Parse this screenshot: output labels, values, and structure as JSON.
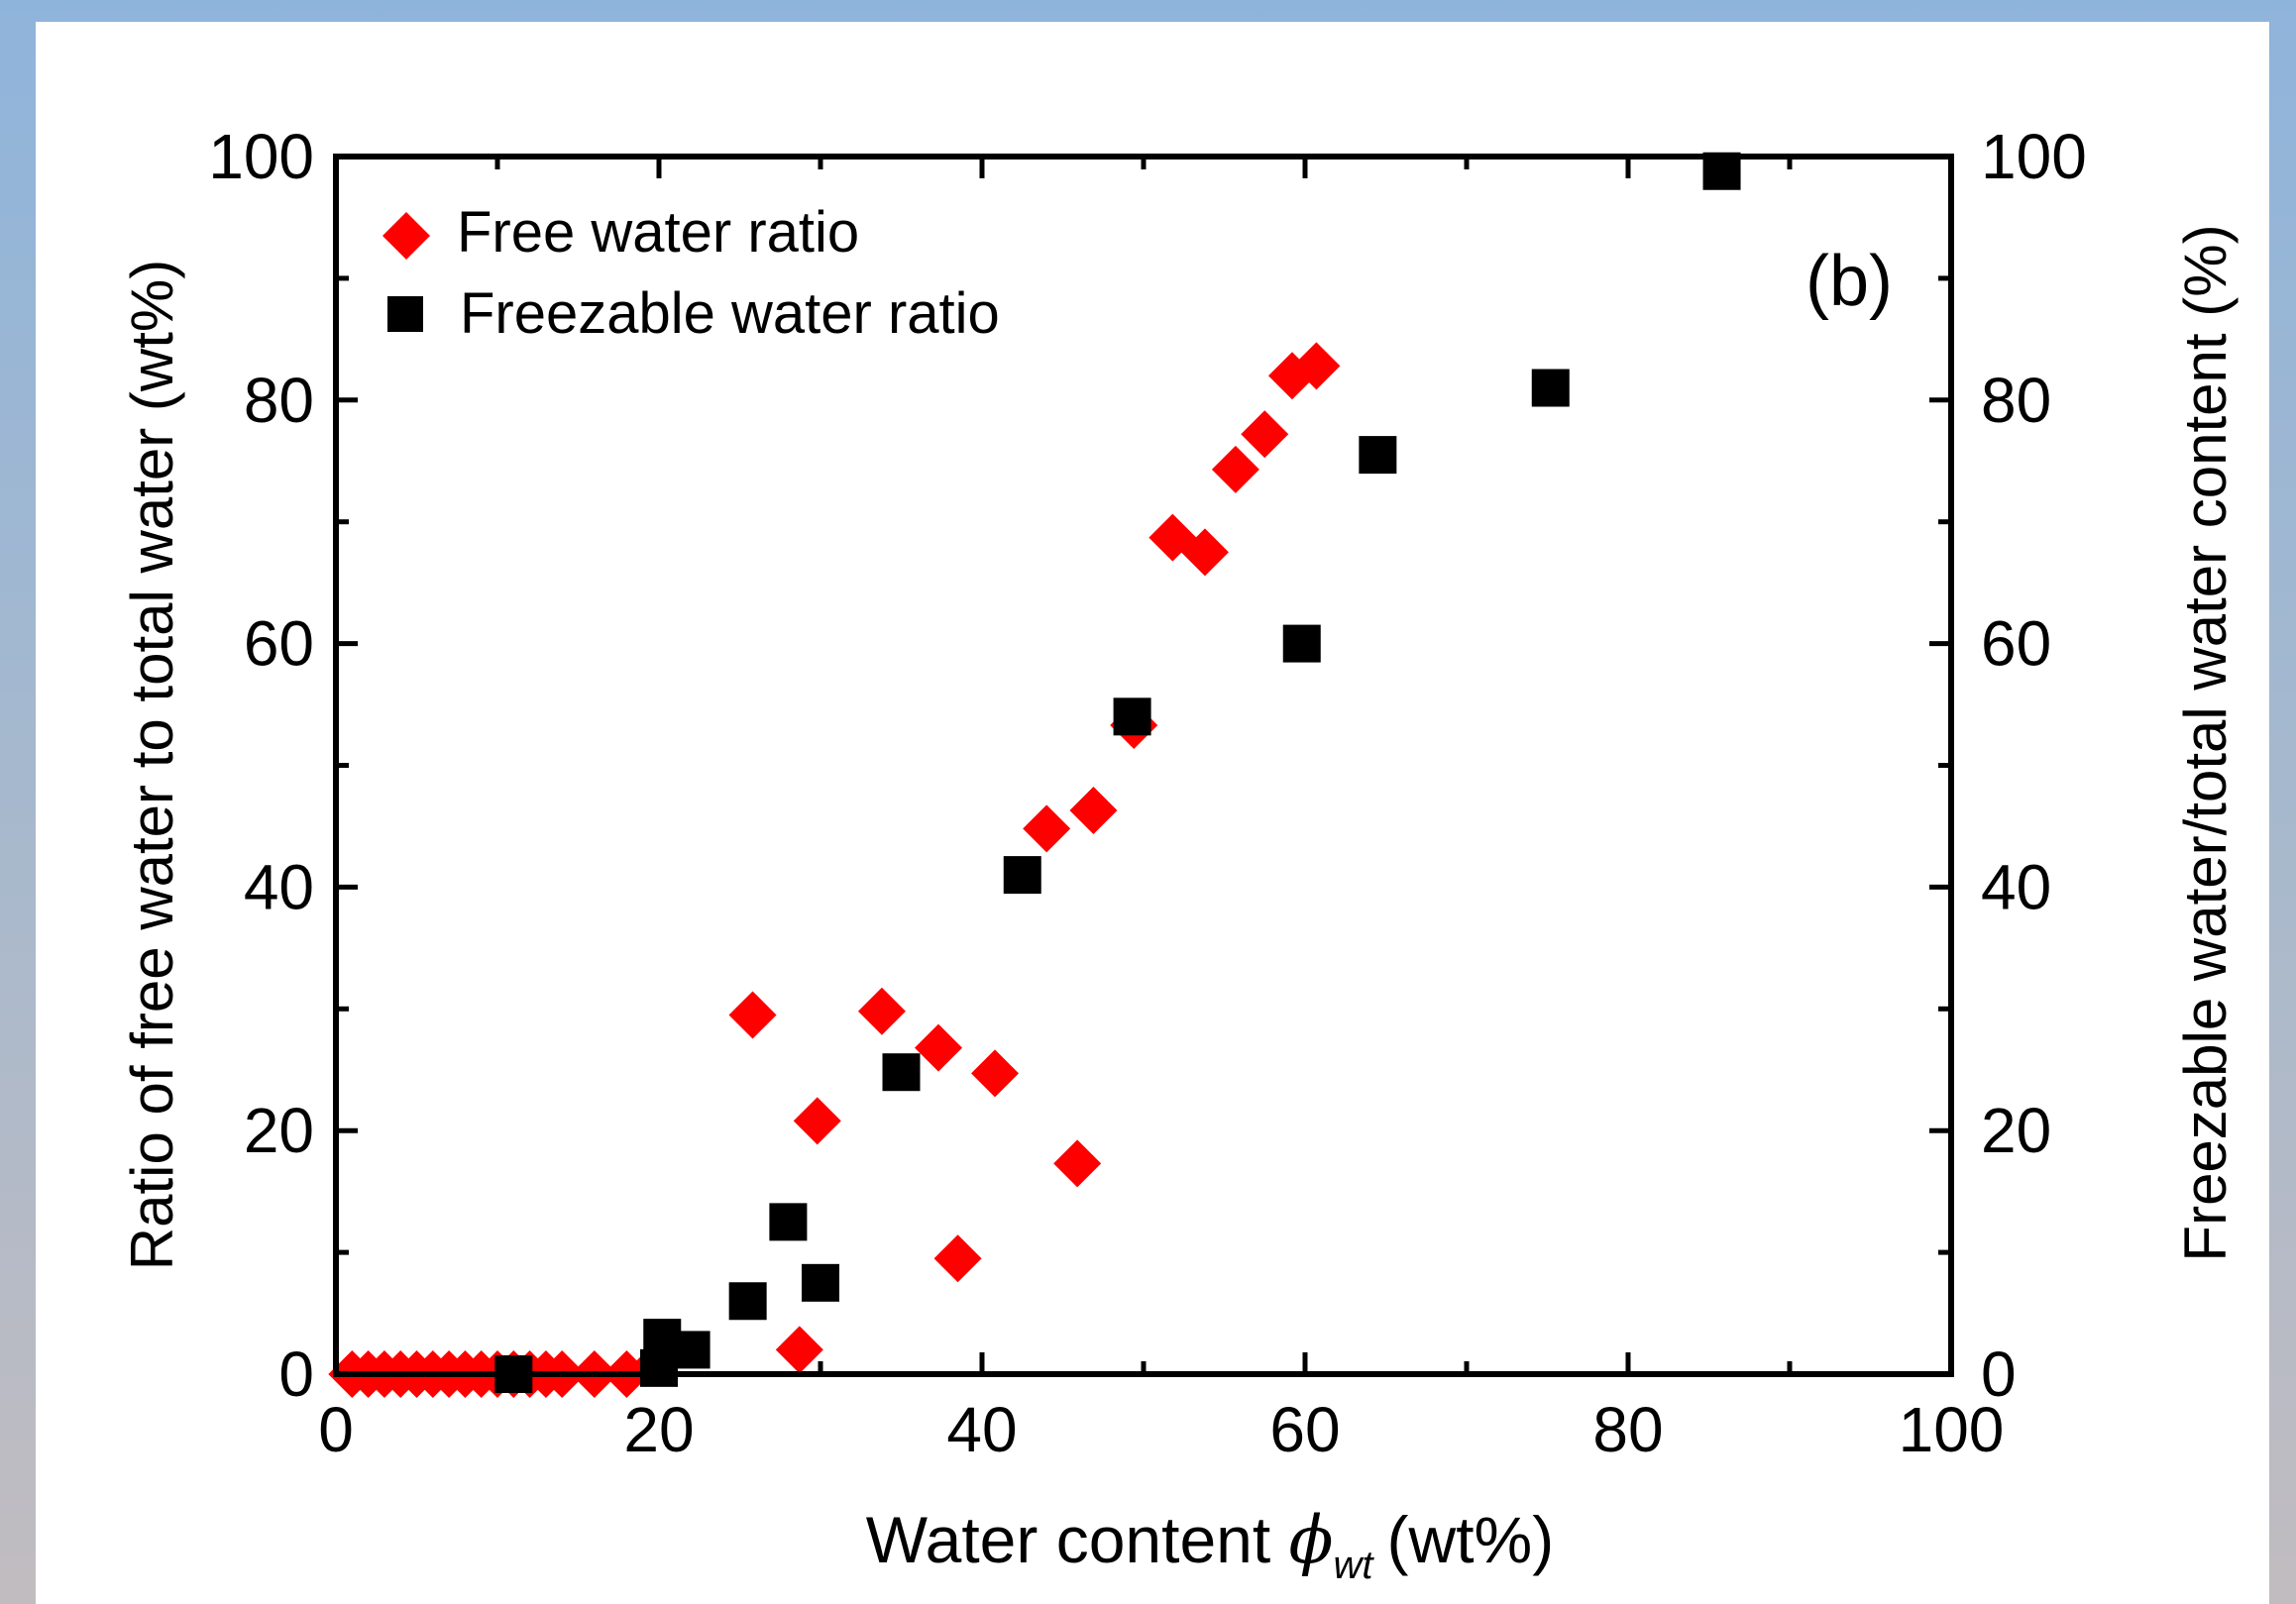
{
  "chart_data": {
    "type": "scatter",
    "panel_label": "(b)",
    "xlabel": "Water content",
    "xlabel_symbol": "ϕ",
    "xlabel_subscript": "wt",
    "xlabel_unit": "(wt%)",
    "ylabel_left": "Ratio of free water to total water (wt%)",
    "ylabel_right": "Freezable water/total water content (%)",
    "xlim": [
      0,
      100
    ],
    "ylim": [
      0,
      100
    ],
    "x_ticks": [
      "0",
      "20",
      "40",
      "60",
      "80",
      "100"
    ],
    "y_ticks": [
      "0",
      "20",
      "40",
      "60",
      "80",
      "100"
    ],
    "y_ticks_right": [
      "0",
      "20",
      "40",
      "60",
      "80",
      "100"
    ],
    "grid": false,
    "legend_position": "top-left",
    "series": [
      {
        "name": "Free water ratio",
        "marker": "diamond",
        "color": "#ff0000",
        "points": [
          [
            1,
            0
          ],
          [
            2,
            0
          ],
          [
            3,
            0
          ],
          [
            4,
            0
          ],
          [
            5,
            0
          ],
          [
            6,
            0
          ],
          [
            7,
            0
          ],
          [
            8,
            0
          ],
          [
            9,
            0
          ],
          [
            10,
            0
          ],
          [
            11,
            0
          ],
          [
            12,
            0
          ],
          [
            13,
            0
          ],
          [
            14,
            0
          ],
          [
            16,
            0
          ],
          [
            18,
            0
          ],
          [
            20,
            1
          ],
          [
            25.8,
            29.5
          ],
          [
            28.7,
            2
          ],
          [
            29.8,
            20.8
          ],
          [
            33.8,
            29.8
          ],
          [
            37.3,
            26.8
          ],
          [
            38.5,
            9.5
          ],
          [
            40.8,
            24.7
          ],
          [
            44,
            44.8
          ],
          [
            45.9,
            17.3
          ],
          [
            46.9,
            46.3
          ],
          [
            49.4,
            53.3
          ],
          [
            51.8,
            68.7
          ],
          [
            53.8,
            67.5
          ],
          [
            55.7,
            74.3
          ],
          [
            57.5,
            77.2
          ],
          [
            59.2,
            82
          ],
          [
            60.7,
            82.8
          ]
        ]
      },
      {
        "name": "Freezable water ratio",
        "marker": "square",
        "color": "#000000",
        "points": [
          [
            11,
            0
          ],
          [
            20,
            0.5
          ],
          [
            20.2,
            3
          ],
          [
            22,
            2
          ],
          [
            25.5,
            6
          ],
          [
            28,
            12.5
          ],
          [
            30,
            7.5
          ],
          [
            35,
            24.8
          ],
          [
            42.5,
            41
          ],
          [
            49.3,
            54
          ],
          [
            59.8,
            60
          ],
          [
            64.5,
            75.5
          ],
          [
            75.2,
            81
          ],
          [
            85.8,
            98.8
          ]
        ]
      }
    ]
  }
}
